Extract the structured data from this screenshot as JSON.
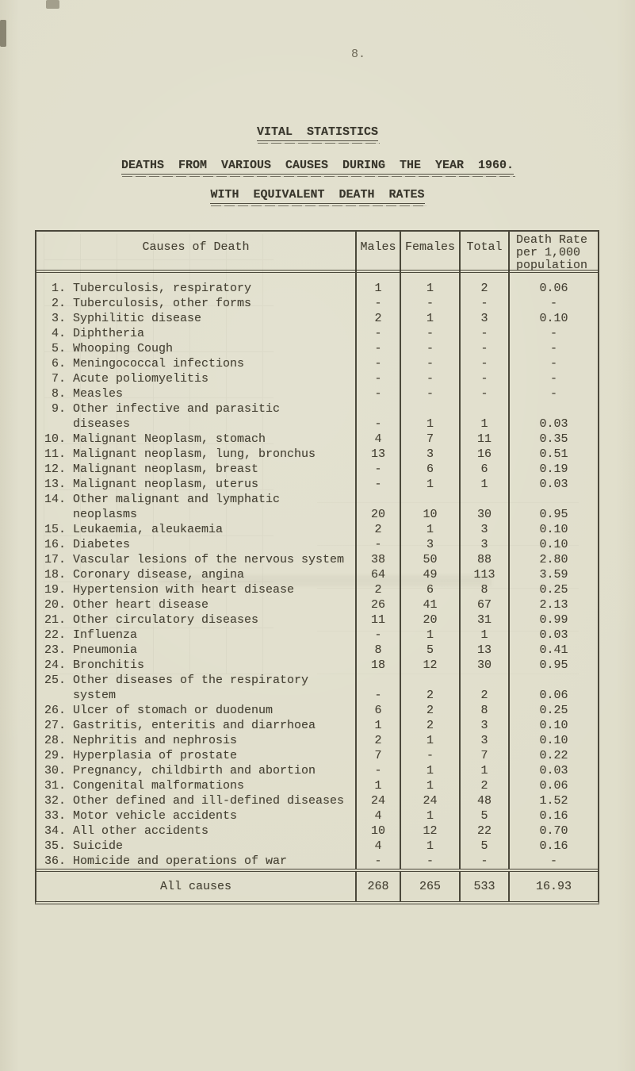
{
  "page": {
    "number": "8."
  },
  "titles": {
    "main": "VITAL  STATISTICS",
    "sub1": "DEATHS  FROM  VARIOUS  CAUSES  DURING  THE  YEAR  1960.",
    "sub2": "WITH  EQUIVALENT  DEATH  RATES"
  },
  "table": {
    "header": {
      "causes": "Causes of Death",
      "males": "Males",
      "females": "Females",
      "total": "Total",
      "rate1": "Death Rate",
      "rate2": "per 1,000",
      "rate3": "population"
    },
    "rows": [
      {
        "l1": " 1. Tuberculosis, respiratory",
        "l2": "",
        "m": "1",
        "f": "1",
        "t": "2",
        "r": "0.06"
      },
      {
        "l1": " 2. Tuberculosis, other forms",
        "l2": "",
        "m": "-",
        "f": "-",
        "t": "-",
        "r": "-"
      },
      {
        "l1": " 3. Syphilitic disease",
        "l2": "",
        "m": "2",
        "f": "1",
        "t": "3",
        "r": "0.10"
      },
      {
        "l1": " 4. Diphtheria",
        "l2": "",
        "m": "-",
        "f": "-",
        "t": "-",
        "r": "-"
      },
      {
        "l1": " 5. Whooping Cough",
        "l2": "",
        "m": "-",
        "f": "-",
        "t": "-",
        "r": "-"
      },
      {
        "l1": " 6. Meningococcal infections",
        "l2": "",
        "m": "-",
        "f": "-",
        "t": "-",
        "r": "-"
      },
      {
        "l1": " 7. Acute poliomyelitis",
        "l2": "",
        "m": "-",
        "f": "-",
        "t": "-",
        "r": "-"
      },
      {
        "l1": " 8. Measles",
        "l2": "",
        "m": "-",
        "f": "-",
        "t": "-",
        "r": "-"
      },
      {
        "l1": " 9. Other infective and parasitic",
        "l2": "diseases",
        "m": "-",
        "f": "1",
        "t": "1",
        "r": "0.03"
      },
      {
        "l1": "10. Malignant Neoplasm, stomach",
        "l2": "",
        "m": "4",
        "f": "7",
        "t": "11",
        "r": "0.35"
      },
      {
        "l1": "11. Malignant neoplasm, lung, bronchus",
        "l2": "",
        "m": "13",
        "f": "3",
        "t": "16",
        "r": "0.51"
      },
      {
        "l1": "12. Malignant neoplasm, breast",
        "l2": "",
        "m": "-",
        "f": "6",
        "t": "6",
        "r": "0.19"
      },
      {
        "l1": "13. Malignant neoplasm, uterus",
        "l2": "",
        "m": "-",
        "f": "1",
        "t": "1",
        "r": "0.03"
      },
      {
        "l1": "14. Other malignant and lymphatic",
        "l2": "neoplasms",
        "m": "20",
        "f": "10",
        "t": "30",
        "r": "0.95"
      },
      {
        "l1": "15. Leukaemia, aleukaemia",
        "l2": "",
        "m": "2",
        "f": "1",
        "t": "3",
        "r": "0.10"
      },
      {
        "l1": "16. Diabetes",
        "l2": "",
        "m": "-",
        "f": "3",
        "t": "3",
        "r": "0.10"
      },
      {
        "l1": "17. Vascular lesions of the nervous system",
        "l2": "",
        "m": "38",
        "f": "50",
        "t": "88",
        "r": "2.80"
      },
      {
        "l1": "18. Coronary disease, angina",
        "l2": "",
        "m": "64",
        "f": "49",
        "t": "113",
        "r": "3.59"
      },
      {
        "l1": "19. Hypertension with heart disease",
        "l2": "",
        "m": "2",
        "f": "6",
        "t": "8",
        "r": "0.25"
      },
      {
        "l1": "20. Other heart disease",
        "l2": "",
        "m": "26",
        "f": "41",
        "t": "67",
        "r": "2.13"
      },
      {
        "l1": "21. Other circulatory diseases",
        "l2": "",
        "m": "11",
        "f": "20",
        "t": "31",
        "r": "0.99"
      },
      {
        "l1": "22. Influenza",
        "l2": "",
        "m": "-",
        "f": "1",
        "t": "1",
        "r": "0.03"
      },
      {
        "l1": "23. Pneumonia",
        "l2": "",
        "m": "8",
        "f": "5",
        "t": "13",
        "r": "0.41"
      },
      {
        "l1": "24. Bronchitis",
        "l2": "",
        "m": "18",
        "f": "12",
        "t": "30",
        "r": "0.95"
      },
      {
        "l1": "25. Other diseases of the respiratory",
        "l2": "system",
        "m": "-",
        "f": "2",
        "t": "2",
        "r": "0.06"
      },
      {
        "l1": "26. Ulcer of stomach or duodenum",
        "l2": "",
        "m": "6",
        "f": "2",
        "t": "8",
        "r": "0.25"
      },
      {
        "l1": "27. Gastritis, enteritis and diarrhoea",
        "l2": "",
        "m": "1",
        "f": "2",
        "t": "3",
        "r": "0.10"
      },
      {
        "l1": "28. Nephritis and nephrosis",
        "l2": "",
        "m": "2",
        "f": "1",
        "t": "3",
        "r": "0.10"
      },
      {
        "l1": "29. Hyperplasia of prostate",
        "l2": "",
        "m": "7",
        "f": "-",
        "t": "7",
        "r": "0.22"
      },
      {
        "l1": "30. Pregnancy, childbirth and abortion",
        "l2": "",
        "m": "-",
        "f": "1",
        "t": "1",
        "r": "0.03"
      },
      {
        "l1": "31. Congenital malformations",
        "l2": "",
        "m": "1",
        "f": "1",
        "t": "2",
        "r": "0.06"
      },
      {
        "l1": "32. Other defined and ill-defined diseases",
        "l2": "",
        "m": "24",
        "f": "24",
        "t": "48",
        "r": "1.52"
      },
      {
        "l1": "33. Motor vehicle accidents",
        "l2": "",
        "m": "4",
        "f": "1",
        "t": "5",
        "r": "0.16"
      },
      {
        "l1": "34. All other accidents",
        "l2": "",
        "m": "10",
        "f": "12",
        "t": "22",
        "r": "0.70"
      },
      {
        "l1": "35. Suicide",
        "l2": "",
        "m": "4",
        "f": "1",
        "t": "5",
        "r": "0.16"
      },
      {
        "l1": "36. Homicide and operations of war",
        "l2": "",
        "m": "-",
        "f": "-",
        "t": "-",
        "r": "-"
      }
    ],
    "footer": {
      "label": "All causes",
      "m": "268",
      "f": "265",
      "t": "533",
      "r": "16.93"
    }
  }
}
